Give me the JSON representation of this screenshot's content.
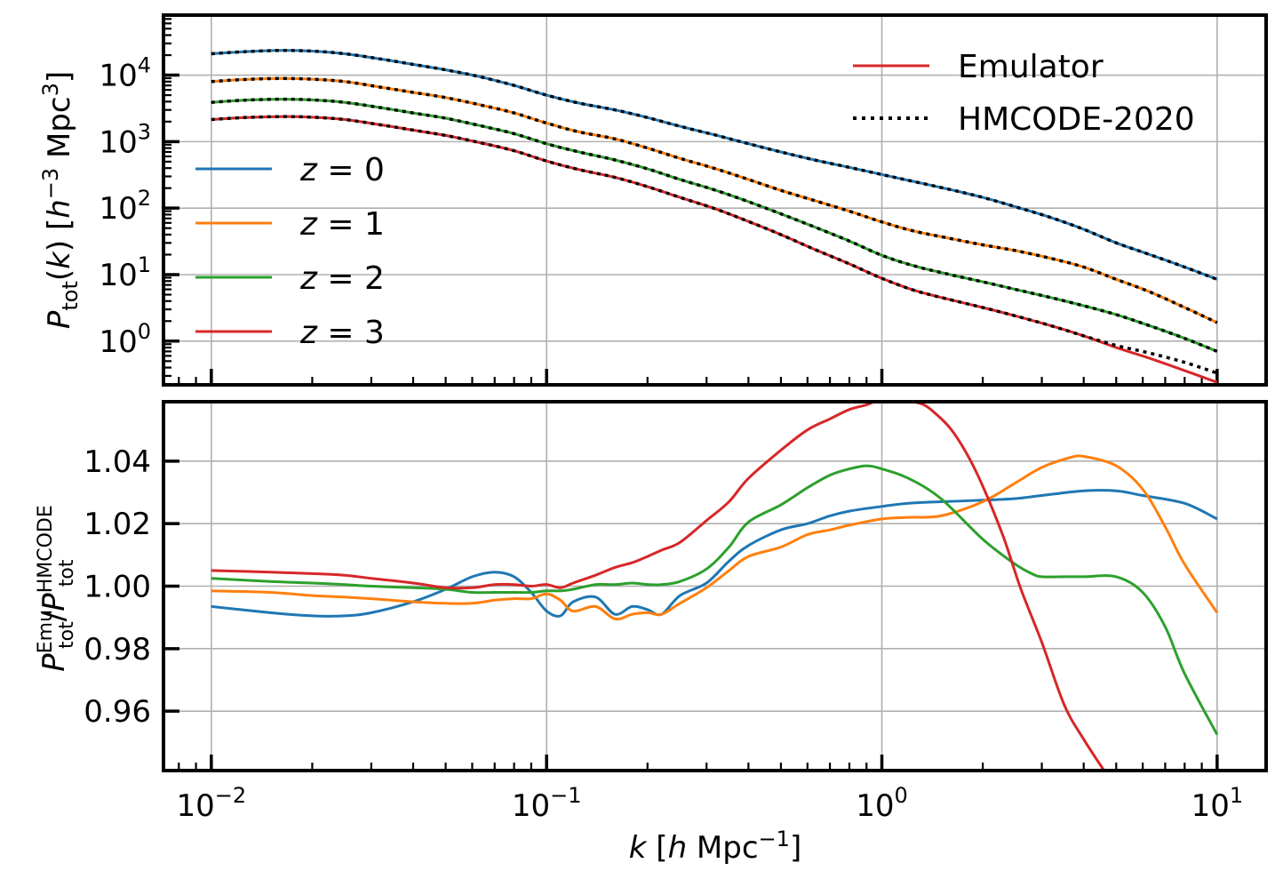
{
  "chart_data": [
    {
      "type": "line",
      "panel": "top",
      "xlabel": "k [h Mpc⁻¹]",
      "ylabel": "P_tot(k) [h⁻³ Mpc³]",
      "xscale": "log",
      "yscale": "log",
      "xlim": [
        0.0072,
        14
      ],
      "ylim": [
        0.22,
        80000
      ],
      "grid": true,
      "x_ticks": [
        0.01,
        0.1,
        1,
        10
      ],
      "y_ticks": [
        1,
        10,
        100,
        1000,
        10000
      ],
      "y_tick_labels": [
        {
          "base": "10",
          "exp": "0"
        },
        {
          "base": "10",
          "exp": "1"
        },
        {
          "base": "10",
          "exp": "2"
        },
        {
          "base": "10",
          "exp": "3"
        },
        {
          "base": "10",
          "exp": "4"
        }
      ],
      "legend_styles": {
        "placement": "top-right",
        "entries": [
          {
            "label": "Emulator",
            "style": "solid",
            "color": "#d62728"
          },
          {
            "label": "HMCODE-2020",
            "style": "dotted",
            "color": "#000000"
          }
        ]
      },
      "legend_redshift": {
        "placement": "center-left",
        "entries": [
          {
            "label": "z = 0",
            "color": "#1f77b4"
          },
          {
            "label": "z = 1",
            "color": "#ff7f0e"
          },
          {
            "label": "z = 2",
            "color": "#2ca02c"
          },
          {
            "label": "z = 3",
            "color": "#d62728"
          }
        ]
      },
      "series": [
        {
          "name": "z = 0",
          "color": "#1f77b4",
          "x": [
            0.01,
            0.0125,
            0.016,
            0.02,
            0.025,
            0.032,
            0.04,
            0.05,
            0.063,
            0.08,
            0.1,
            0.125,
            0.16,
            0.2,
            0.25,
            0.32,
            0.4,
            0.5,
            0.63,
            0.8,
            1.0,
            1.25,
            1.6,
            2.0,
            2.5,
            3.2,
            4.0,
            5.0,
            6.3,
            8.0,
            10.0
          ],
          "y": [
            21000,
            22500,
            23500,
            23000,
            21000,
            17500,
            14500,
            12000,
            9500,
            7000,
            5000,
            3800,
            3000,
            2300,
            1700,
            1250,
            930,
            700,
            530,
            410,
            320,
            250,
            190,
            145,
            105,
            72,
            48,
            30,
            20,
            13,
            8.5
          ]
        },
        {
          "name": "z = 1",
          "color": "#ff7f0e",
          "x": [
            0.01,
            0.0125,
            0.016,
            0.02,
            0.025,
            0.032,
            0.04,
            0.05,
            0.063,
            0.08,
            0.1,
            0.125,
            0.16,
            0.2,
            0.25,
            0.32,
            0.4,
            0.5,
            0.63,
            0.8,
            1.0,
            1.25,
            1.6,
            2.0,
            2.5,
            3.2,
            4.0,
            5.0,
            6.3,
            8.0,
            10.0
          ],
          "y": [
            8000,
            8600,
            8900,
            8700,
            8000,
            6600,
            5500,
            4600,
            3600,
            2700,
            1900,
            1400,
            1100,
            800,
            560,
            390,
            270,
            185,
            130,
            90,
            62,
            45,
            35,
            28,
            23,
            17.5,
            13,
            8.5,
            5.5,
            3.2,
            1.9
          ]
        },
        {
          "name": "z = 2",
          "color": "#2ca02c",
          "x": [
            0.01,
            0.0125,
            0.016,
            0.02,
            0.025,
            0.032,
            0.04,
            0.05,
            0.063,
            0.08,
            0.1,
            0.125,
            0.16,
            0.2,
            0.25,
            0.32,
            0.4,
            0.5,
            0.63,
            0.8,
            1.0,
            1.25,
            1.6,
            2.0,
            2.5,
            3.2,
            4.0,
            5.0,
            6.3,
            8.0,
            10.0
          ],
          "y": [
            3900,
            4200,
            4350,
            4250,
            3900,
            3250,
            2700,
            2250,
            1750,
            1320,
            930,
            700,
            530,
            390,
            270,
            185,
            125,
            82,
            52,
            32,
            19.5,
            13.5,
            10,
            7.8,
            6,
            4.5,
            3.4,
            2.5,
            1.7,
            1.1,
            0.7
          ]
        },
        {
          "name": "z = 3",
          "color": "#d62728",
          "x": [
            0.01,
            0.0125,
            0.016,
            0.02,
            0.025,
            0.032,
            0.04,
            0.05,
            0.063,
            0.08,
            0.1,
            0.125,
            0.16,
            0.2,
            0.25,
            0.32,
            0.4,
            0.5,
            0.63,
            0.8,
            1.0,
            1.25,
            1.6,
            2.0,
            2.5,
            3.2,
            4.0,
            5.0,
            6.3,
            8.0,
            10.0
          ],
          "y": [
            2150,
            2300,
            2380,
            2330,
            2150,
            1790,
            1490,
            1240,
            970,
            730,
            510,
            380,
            290,
            210,
            145,
            97,
            63,
            40,
            24,
            14.5,
            8.8,
            5.8,
            4.2,
            3.2,
            2.4,
            1.7,
            1.2,
            0.8,
            0.55,
            0.36,
            0.24
          ]
        }
      ],
      "hmcode_z3_tail": {
        "x": [
          5.0,
          6.3,
          8.0,
          10.0
        ],
        "y": [
          0.86,
          0.66,
          0.48,
          0.33
        ]
      }
    },
    {
      "type": "line",
      "panel": "bottom",
      "xlabel": "k [h Mpc⁻¹]",
      "ylabel": "P_tot^Emu / P_tot^HMCODE",
      "xscale": "log",
      "xlim": [
        0.0072,
        14
      ],
      "ylim": [
        0.941,
        1.059
      ],
      "grid": true,
      "x_ticks": [
        0.01,
        0.1,
        1,
        10
      ],
      "x_tick_labels": [
        {
          "base": "10",
          "exp": "−2"
        },
        {
          "base": "10",
          "exp": "−1"
        },
        {
          "base": "10",
          "exp": "0"
        },
        {
          "base": "10",
          "exp": "1"
        }
      ],
      "y_ticks": [
        0.96,
        0.98,
        1.0,
        1.02,
        1.04
      ],
      "y_tick_labels": [
        "0.96",
        "0.98",
        "1.00",
        "1.02",
        "1.04"
      ],
      "series": [
        {
          "name": "z = 0",
          "color": "#1f77b4",
          "x": [
            0.01,
            0.015,
            0.02,
            0.025,
            0.03,
            0.04,
            0.05,
            0.06,
            0.07,
            0.08,
            0.09,
            0.1,
            0.11,
            0.12,
            0.14,
            0.16,
            0.18,
            0.2,
            0.22,
            0.25,
            0.3,
            0.35,
            0.4,
            0.5,
            0.6,
            0.7,
            0.8,
            1.0,
            1.2,
            1.5,
            2.0,
            2.5,
            3.0,
            4.0,
            5.0,
            6.0,
            8.0,
            10.0
          ],
          "y": [
            0.9935,
            0.9915,
            0.9905,
            0.9905,
            0.9915,
            0.995,
            0.999,
            1.003,
            1.0045,
            1.003,
            0.998,
            0.992,
            0.9905,
            0.995,
            0.9965,
            0.991,
            0.9935,
            0.9925,
            0.991,
            0.997,
            1.001,
            1.008,
            1.013,
            1.018,
            1.02,
            1.0225,
            1.024,
            1.0255,
            1.0265,
            1.027,
            1.0275,
            1.028,
            1.029,
            1.0305,
            1.0305,
            1.029,
            1.0265,
            1.0215
          ]
        },
        {
          "name": "z = 1",
          "color": "#ff7f0e",
          "x": [
            0.01,
            0.015,
            0.02,
            0.025,
            0.03,
            0.04,
            0.05,
            0.06,
            0.07,
            0.08,
            0.09,
            0.1,
            0.11,
            0.12,
            0.14,
            0.16,
            0.18,
            0.2,
            0.22,
            0.25,
            0.3,
            0.35,
            0.4,
            0.5,
            0.6,
            0.7,
            0.8,
            1.0,
            1.2,
            1.5,
            2.0,
            2.5,
            3.0,
            3.6,
            4.0,
            5.0,
            6.0,
            7.0,
            8.0,
            10.0
          ],
          "y": [
            0.9985,
            0.998,
            0.997,
            0.9965,
            0.996,
            0.995,
            0.9945,
            0.9945,
            0.9955,
            0.996,
            0.996,
            0.9975,
            0.9955,
            0.992,
            0.9935,
            0.9895,
            0.991,
            0.9915,
            0.991,
            0.9945,
            0.9995,
            1.005,
            1.0095,
            1.0125,
            1.0165,
            1.018,
            1.0195,
            1.0215,
            1.022,
            1.0225,
            1.027,
            1.033,
            1.038,
            1.041,
            1.0415,
            1.0385,
            1.031,
            1.019,
            1.007,
            0.9915
          ]
        },
        {
          "name": "z = 2",
          "color": "#2ca02c",
          "x": [
            0.01,
            0.015,
            0.02,
            0.025,
            0.03,
            0.04,
            0.05,
            0.06,
            0.07,
            0.08,
            0.09,
            0.1,
            0.11,
            0.12,
            0.14,
            0.16,
            0.18,
            0.2,
            0.22,
            0.25,
            0.3,
            0.35,
            0.4,
            0.5,
            0.6,
            0.7,
            0.8,
            0.9,
            1.0,
            1.2,
            1.5,
            2.0,
            2.5,
            2.8,
            3.0,
            3.5,
            4.0,
            5.0,
            6.0,
            7.0,
            8.0,
            10.0
          ],
          "y": [
            1.0025,
            1.0015,
            1.001,
            1.0005,
            1.0,
            0.9995,
            0.999,
            0.998,
            0.998,
            0.998,
            0.998,
            0.9985,
            0.9985,
            0.999,
            1.0005,
            1.0005,
            1.001,
            1.0005,
            1.0005,
            1.0015,
            1.0055,
            1.0125,
            1.0205,
            1.026,
            1.0315,
            1.0355,
            1.0375,
            1.0385,
            1.0375,
            1.0345,
            1.028,
            1.015,
            1.007,
            1.004,
            1.003,
            1.003,
            1.003,
            1.003,
            0.998,
            0.987,
            0.972,
            0.9525
          ]
        },
        {
          "name": "z = 3",
          "color": "#d62728",
          "x": [
            0.01,
            0.015,
            0.02,
            0.025,
            0.03,
            0.04,
            0.05,
            0.06,
            0.07,
            0.08,
            0.09,
            0.1,
            0.11,
            0.12,
            0.14,
            0.16,
            0.18,
            0.2,
            0.22,
            0.25,
            0.3,
            0.35,
            0.4,
            0.5,
            0.6,
            0.7,
            0.8,
            0.9,
            0.95,
            1.0,
            1.1,
            1.2,
            1.3,
            1.4,
            1.6,
            1.8,
            2.0,
            2.3,
            2.6,
            3.0,
            3.5,
            4.0,
            4.6
          ],
          "y": [
            1.005,
            1.0045,
            1.004,
            1.0035,
            1.0025,
            1.001,
            0.9995,
            0.9995,
            1.0005,
            1.0005,
            1.0,
            1.0005,
            0.9995,
            1.001,
            1.0035,
            1.006,
            1.0075,
            1.0095,
            1.0115,
            1.014,
            1.021,
            1.027,
            1.0345,
            1.0435,
            1.05,
            1.0535,
            1.0565,
            1.058,
            1.059,
            1.059,
            1.059,
            1.059,
            1.0585,
            1.0565,
            1.0505,
            1.042,
            1.032,
            1.016,
            0.999,
            0.982,
            0.962,
            0.951,
            0.941
          ]
        }
      ]
    }
  ]
}
